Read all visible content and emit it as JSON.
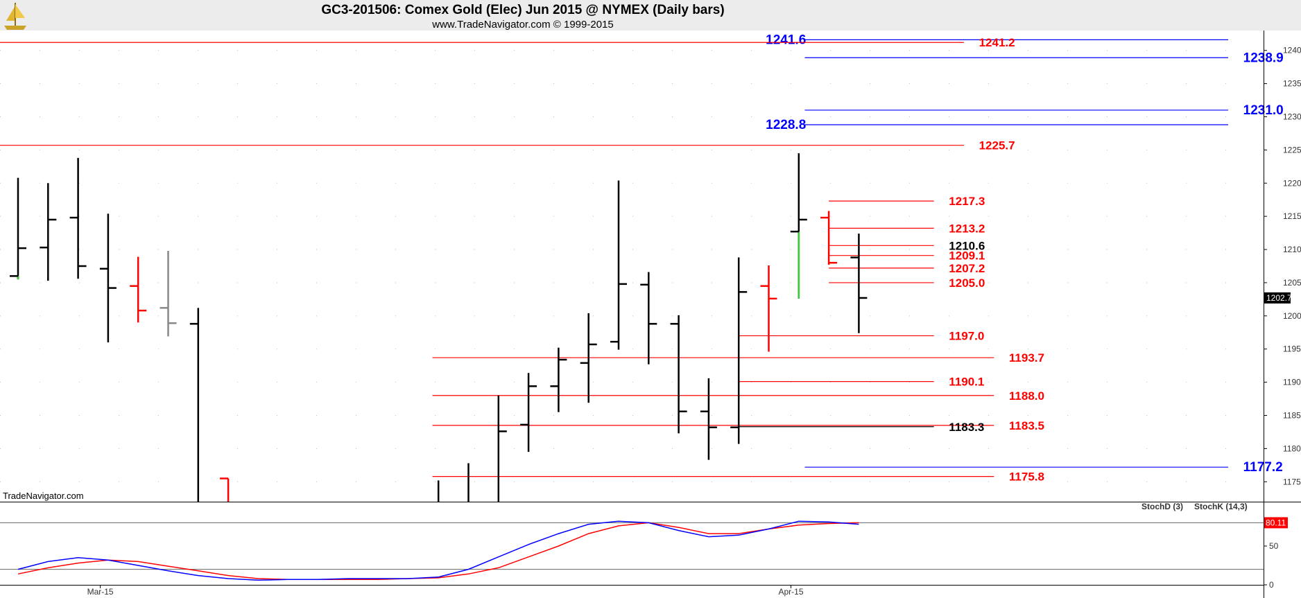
{
  "header": {
    "title": "GC3-201506:  Comex Gold (Elec) Jun 2015 @ NYMEX  (Daily bars)",
    "subtitle": "www.TradeNavigator.com © 1999-2015",
    "watermark": "TradeNavigator.com",
    "logo_icon": "ship-logo-icon"
  },
  "colors": {
    "background": "#ffffff",
    "header_bg": "#ececec",
    "red_line": "#ff0000",
    "blue_line": "#0000ff",
    "red_label": "#ff0000",
    "blue_label": "#0000ff",
    "bar_black": "#000000",
    "bar_red": "#ff0000",
    "bar_gray": "#888888",
    "bar_green": "#33cc33",
    "stoch_d": "#ff0000",
    "stoch_k": "#0000ff"
  },
  "chart_data": [
    {
      "type": "ohlc",
      "ylim": [
        1172,
        1243
      ],
      "y_ticks": [
        {
          "value": 1175,
          "label": "1175.0"
        },
        {
          "value": 1180,
          "label": "1180.0"
        },
        {
          "value": 1185,
          "label": "1185.0"
        },
        {
          "value": 1190,
          "label": "1190.0"
        },
        {
          "value": 1195,
          "label": "1195.0"
        },
        {
          "value": 1200,
          "label": "1200.0"
        },
        {
          "value": 1205,
          "label": "1205.0"
        },
        {
          "value": 1210,
          "label": "1210.0"
        },
        {
          "value": 1215,
          "label": "1215.0"
        },
        {
          "value": 1220,
          "label": "1220.0"
        },
        {
          "value": 1225,
          "label": "1225.0"
        },
        {
          "value": 1230,
          "label": "1230.0"
        },
        {
          "value": 1235,
          "label": "1235.0"
        },
        {
          "value": 1240,
          "label": "1240.0"
        }
      ],
      "x_labels": [
        {
          "index": 2,
          "label": "Mar-15"
        },
        {
          "index": 25,
          "label": "Apr-15"
        }
      ],
      "last_price_label": "1202.7",
      "last_price": 1202.7,
      "bars": [
        {
          "i": 0,
          "o": 1206.0,
          "h": 1220.8,
          "l": 1205.5,
          "c": 1210.2,
          "color": "black",
          "green_tail": true
        },
        {
          "i": 1,
          "o": 1210.3,
          "h": 1220.0,
          "l": 1205.3,
          "c": 1214.5,
          "color": "black"
        },
        {
          "i": 2,
          "o": 1214.8,
          "h": 1223.8,
          "l": 1205.6,
          "c": 1207.5,
          "color": "black"
        },
        {
          "i": 3,
          "o": 1207.1,
          "h": 1215.4,
          "l": 1196.0,
          "c": 1204.2,
          "color": "black"
        },
        {
          "i": 4,
          "o": 1204.5,
          "h": 1208.9,
          "l": 1199.0,
          "c": 1200.8,
          "color": "red"
        },
        {
          "i": 5,
          "o": 1201.2,
          "h": 1209.8,
          "l": 1196.9,
          "c": 1198.9,
          "color": "gray"
        },
        {
          "i": 6,
          "o": 1198.8,
          "h": 1201.2,
          "l": 1172.0,
          "c": 1172.0,
          "color": "black"
        },
        {
          "i": 7,
          "o": 1175.5,
          "h": 1175.5,
          "l": 1172.0,
          "c": 1172.0,
          "color": "red"
        },
        {
          "i": 14,
          "o": 1172.0,
          "h": 1175.2,
          "l": 1172.0,
          "c": 1172.0,
          "color": "black"
        },
        {
          "i": 15,
          "o": 1172.0,
          "h": 1177.8,
          "l": 1172.0,
          "c": 1172.0,
          "color": "black"
        },
        {
          "i": 16,
          "o": 1172.0,
          "h": 1188.0,
          "l": 1172.0,
          "c": 1182.6,
          "color": "black"
        },
        {
          "i": 17,
          "o": 1183.6,
          "h": 1191.4,
          "l": 1179.5,
          "c": 1189.4,
          "color": "black"
        },
        {
          "i": 18,
          "o": 1189.4,
          "h": 1195.2,
          "l": 1185.5,
          "c": 1193.4,
          "color": "black"
        },
        {
          "i": 19,
          "o": 1192.9,
          "h": 1200.4,
          "l": 1186.9,
          "c": 1195.7,
          "color": "black"
        },
        {
          "i": 20,
          "o": 1196.1,
          "h": 1220.4,
          "l": 1194.9,
          "c": 1204.8,
          "color": "black"
        },
        {
          "i": 21,
          "o": 1204.7,
          "h": 1206.6,
          "l": 1192.7,
          "c": 1198.8,
          "color": "black"
        },
        {
          "i": 22,
          "o": 1198.8,
          "h": 1200.1,
          "l": 1182.3,
          "c": 1185.6,
          "color": "black"
        },
        {
          "i": 23,
          "o": 1185.6,
          "h": 1190.6,
          "l": 1178.3,
          "c": 1183.2,
          "color": "black"
        },
        {
          "i": 24,
          "o": 1183.2,
          "h": 1208.8,
          "l": 1180.7,
          "c": 1203.6,
          "color": "black"
        },
        {
          "i": 25,
          "o": 1204.5,
          "h": 1207.6,
          "l": 1194.6,
          "c": 1202.6,
          "color": "red"
        },
        {
          "i": 26,
          "o": 1212.7,
          "h": 1224.5,
          "l": 1202.6,
          "c": 1214.5,
          "color": "black",
          "green_tail": true
        },
        {
          "i": 27,
          "o": 1214.8,
          "h": 1215.8,
          "l": 1207.7,
          "c": 1208.0,
          "color": "red"
        },
        {
          "i": 28,
          "o": 1208.8,
          "h": 1212.4,
          "l": 1197.4,
          "c": 1202.7,
          "color": "black"
        }
      ],
      "levels": [
        {
          "value": 1241.6,
          "label": "1241.6",
          "color": "blue",
          "line_from": 26.2,
          "line_to": 40.3,
          "label_at": 24.9
        },
        {
          "value": 1241.2,
          "label": "1241.2",
          "color": "red",
          "line_from": -3,
          "line_to": 31.5,
          "label_at": 32.0
        },
        {
          "value": 1238.9,
          "label": "1238.9",
          "color": "blue",
          "line_from": 26.2,
          "line_to": 40.3,
          "label_at": 40.8
        },
        {
          "value": 1231.0,
          "label": "1231.0",
          "color": "blue",
          "line_from": 26.2,
          "line_to": 40.3,
          "label_at": 40.8
        },
        {
          "value": 1228.8,
          "label": "1228.8",
          "color": "blue",
          "line_from": 26.2,
          "line_to": 40.3,
          "label_at": 24.9
        },
        {
          "value": 1225.7,
          "label": "1225.7",
          "color": "red",
          "line_from": -3,
          "line_to": 31.5,
          "label_at": 32.0
        },
        {
          "value": 1217.3,
          "label": "1217.3",
          "color": "red",
          "line_from": 27.0,
          "line_to": 30.5,
          "label_at": 31.0
        },
        {
          "value": 1213.2,
          "label": "1213.2",
          "color": "red",
          "line_from": 27.0,
          "line_to": 30.5,
          "label_at": 31.0
        },
        {
          "value": 1210.6,
          "label": "1210.6",
          "color": "red",
          "line_from": 27.0,
          "line_to": 30.5,
          "label_at": 31.0,
          "label_color": "black"
        },
        {
          "value": 1209.1,
          "label": "1209.1",
          "color": "red",
          "line_from": 27.0,
          "line_to": 30.5,
          "label_at": 31.0
        },
        {
          "value": 1207.2,
          "label": "1207.2",
          "color": "red",
          "line_from": 27.0,
          "line_to": 30.5,
          "label_at": 31.0
        },
        {
          "value": 1205.0,
          "label": "1205.0",
          "color": "red",
          "line_from": 27.0,
          "line_to": 30.5,
          "label_at": 31.0
        },
        {
          "value": 1197.0,
          "label": "1197.0",
          "color": "red",
          "line_from": 24.0,
          "line_to": 30.5,
          "label_at": 31.0
        },
        {
          "value": 1193.7,
          "label": "1193.7",
          "color": "red",
          "line_from": 13.8,
          "line_to": 32.5,
          "label_at": 33.0
        },
        {
          "value": 1190.1,
          "label": "1190.1",
          "color": "red",
          "line_from": 24.0,
          "line_to": 30.5,
          "label_at": 31.0
        },
        {
          "value": 1188.0,
          "label": "1188.0",
          "color": "red",
          "line_from": 13.8,
          "line_to": 32.5,
          "label_at": 33.0
        },
        {
          "value": 1183.5,
          "label": "1183.5",
          "color": "red",
          "line_from": 13.8,
          "line_to": 32.5,
          "label_at": 33.0
        },
        {
          "value": 1183.3,
          "label": "1183.3",
          "color": "black",
          "line_from": 24.0,
          "line_to": 30.5,
          "label_at": 31.0
        },
        {
          "value": 1177.2,
          "label": "1177.2",
          "color": "blue",
          "line_from": 26.2,
          "line_to": 40.3,
          "label_at": 40.8
        },
        {
          "value": 1175.8,
          "label": "1175.8",
          "color": "red",
          "line_from": 13.8,
          "line_to": 32.5,
          "label_at": 33.0
        }
      ]
    },
    {
      "type": "line",
      "title": "",
      "ylim": [
        0,
        100
      ],
      "y_ticks": [
        {
          "value": 0,
          "label": "0"
        },
        {
          "value": 50,
          "label": "50"
        }
      ],
      "reference_lines": [
        20,
        80
      ],
      "legend": [
        {
          "name": "StochD (3)",
          "color": "red"
        },
        {
          "name": "StochK (14,3)",
          "color": "blue"
        }
      ],
      "last_value_label": "80.11",
      "series": [
        {
          "name": "StochD (3)",
          "color": "red",
          "x": [
            0,
            1,
            2,
            3,
            4,
            5,
            6,
            7,
            8,
            9,
            10,
            11,
            12,
            13,
            14,
            15,
            16,
            17,
            18,
            19,
            20,
            21,
            22,
            23,
            24,
            25,
            26,
            27,
            28
          ],
          "values": [
            14,
            22,
            28,
            32,
            30,
            24,
            18,
            12,
            8,
            7,
            7,
            7,
            7,
            8,
            9,
            14,
            22,
            36,
            50,
            66,
            76,
            80,
            74,
            66,
            66,
            72,
            77,
            79,
            80
          ]
        },
        {
          "name": "StochK (14,3)",
          "color": "blue",
          "x": [
            0,
            1,
            2,
            3,
            4,
            5,
            6,
            7,
            8,
            9,
            10,
            11,
            12,
            13,
            14,
            15,
            16,
            17,
            18,
            19,
            20,
            21,
            22,
            23,
            24,
            25,
            26,
            27,
            28
          ],
          "values": [
            20,
            30,
            35,
            32,
            25,
            18,
            12,
            8,
            6,
            7,
            7,
            8,
            8,
            8,
            10,
            20,
            36,
            52,
            66,
            78,
            82,
            80,
            70,
            62,
            64,
            72,
            82,
            81,
            78
          ]
        }
      ]
    }
  ]
}
